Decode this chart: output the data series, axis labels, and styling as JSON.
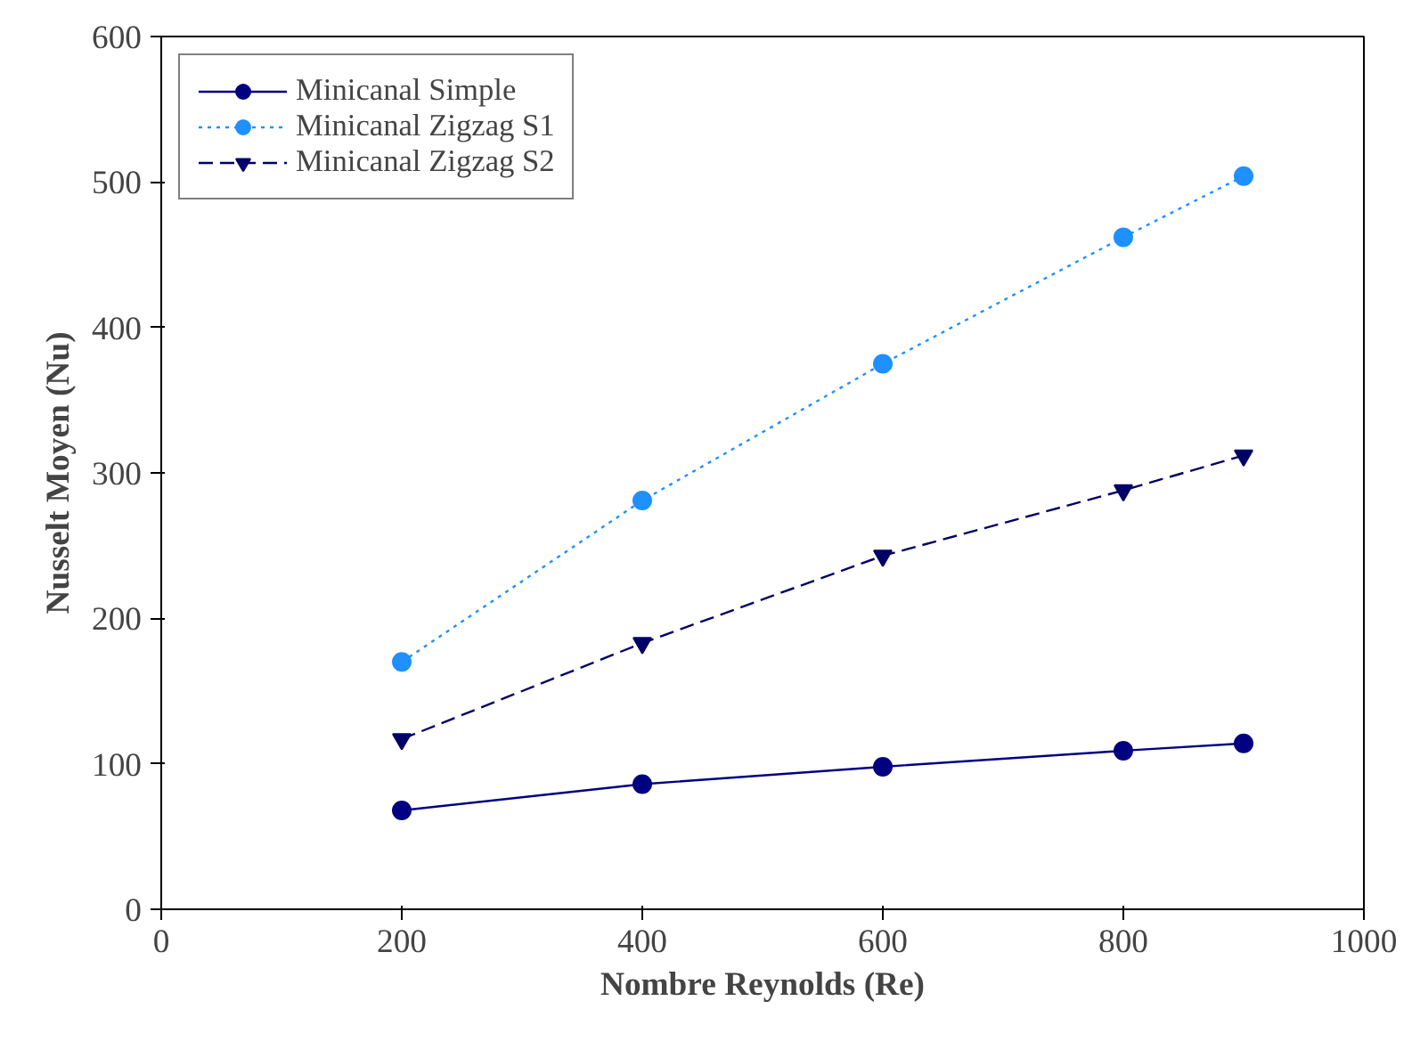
{
  "chart_data": {
    "type": "line",
    "xlabel": "Nombre Reynolds (Re)",
    "ylabel": "Nusselt Moyen (Nu)",
    "x": [
      200,
      400,
      600,
      800,
      900
    ],
    "series": [
      {
        "name": "Minicanal Simple",
        "color": "#000080",
        "marker": "circle",
        "line_style": "solid",
        "values": [
          68,
          86,
          98,
          109,
          114
        ]
      },
      {
        "name": "Minicanal Zigzag S1",
        "color": "#1e90ff",
        "marker": "circle",
        "line_style": "dotted",
        "values": [
          170,
          281,
          375,
          462,
          504
        ]
      },
      {
        "name": "Minicanal Zigzag S2",
        "color": "#000066",
        "marker": "triangle",
        "line_style": "dashed",
        "values": [
          117,
          183,
          243,
          288,
          312
        ]
      }
    ],
    "xlim": [
      0,
      1000
    ],
    "xticks": [
      0,
      200,
      400,
      600,
      800,
      1000
    ],
    "ylim": [
      0,
      600
    ],
    "yticks": [
      0,
      100,
      200,
      300,
      400,
      500,
      600
    ],
    "grid": false,
    "legend": "top left"
  }
}
